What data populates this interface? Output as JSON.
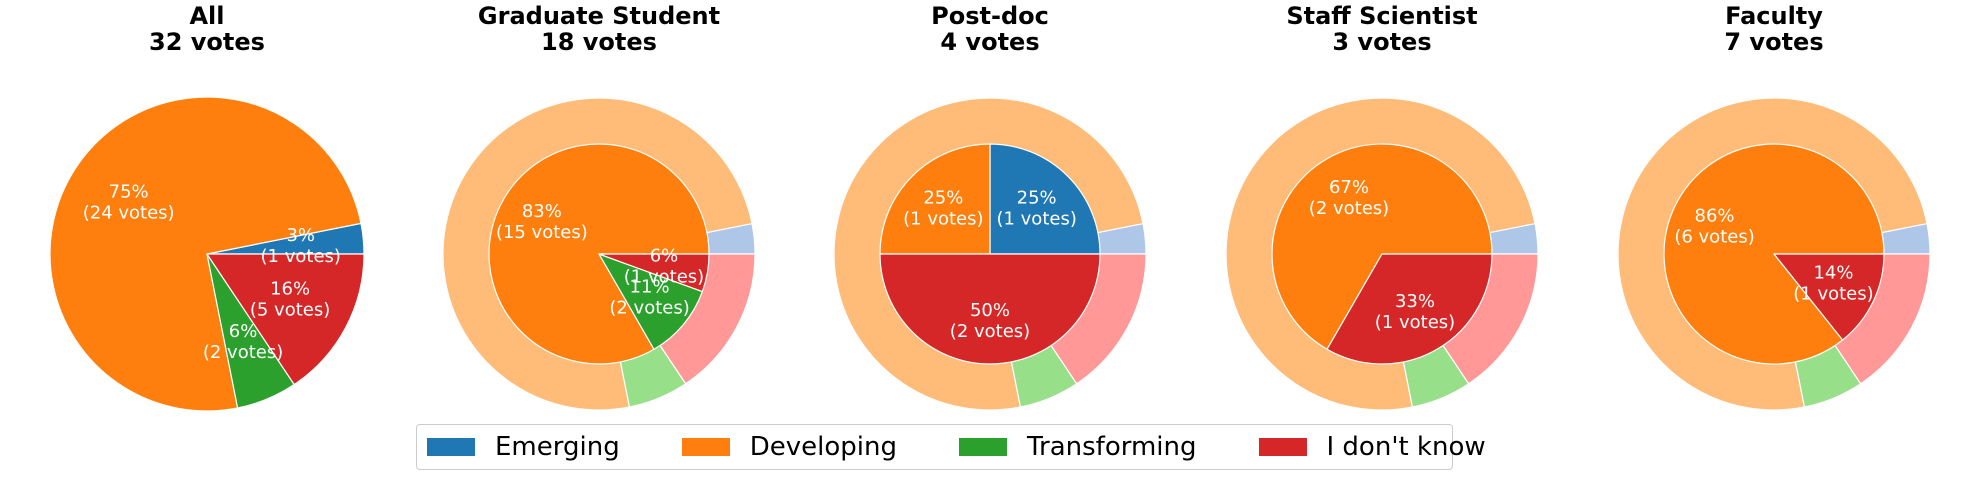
{
  "chart_data": {
    "type": "pie",
    "categories": [
      "Emerging",
      "Developing",
      "Transforming",
      "I don't know"
    ],
    "colors": {
      "inner": [
        "#1f77b4",
        "#ff7f0e",
        "#2ca02c",
        "#d62728"
      ],
      "outer": [
        "#aec7e8",
        "#ffbb78",
        "#98df8a",
        "#ff9896"
      ]
    },
    "outer_ring_values": [
      1,
      24,
      2,
      5
    ],
    "charts": [
      {
        "title": "All",
        "subtitle": "32 votes",
        "values": [
          1,
          24,
          2,
          5
        ],
        "labels": [
          {
            "pct": "3%",
            "votes": "(1 votes)"
          },
          {
            "pct": "75%",
            "votes": "(24 votes)"
          },
          {
            "pct": "6%",
            "votes": "(2 votes)"
          },
          {
            "pct": "16%",
            "votes": "(5 votes)"
          }
        ],
        "outer_ring": false
      },
      {
        "title": "Graduate Student",
        "subtitle": "18 votes",
        "values": [
          0,
          15,
          2,
          1
        ],
        "labels": [
          null,
          {
            "pct": "83%",
            "votes": "(15 votes)"
          },
          {
            "pct": "11%",
            "votes": "(2 votes)"
          },
          {
            "pct": "6%",
            "votes": "(1 votes)"
          }
        ],
        "outer_ring": true
      },
      {
        "title": "Post-doc",
        "subtitle": "4 votes",
        "values": [
          1,
          1,
          0,
          2
        ],
        "labels": [
          {
            "pct": "25%",
            "votes": "(1 votes)"
          },
          {
            "pct": "25%",
            "votes": "(1 votes)"
          },
          null,
          {
            "pct": "50%",
            "votes": "(2 votes)"
          }
        ],
        "outer_ring": true
      },
      {
        "title": "Staff Scientist",
        "subtitle": "3 votes",
        "values": [
          0,
          2,
          0,
          1
        ],
        "labels": [
          null,
          {
            "pct": "67%",
            "votes": "(2 votes)"
          },
          null,
          {
            "pct": "33%",
            "votes": "(1 votes)"
          }
        ],
        "outer_ring": true
      },
      {
        "title": "Faculty",
        "subtitle": "7 votes",
        "values": [
          0,
          6,
          0,
          1
        ],
        "labels": [
          null,
          {
            "pct": "86%",
            "votes": "(6 votes)"
          },
          null,
          {
            "pct": "14%",
            "votes": "(1 votes)"
          }
        ],
        "outer_ring": true
      }
    ],
    "legend": {
      "placement": "bottom-center",
      "entries": [
        "Emerging",
        "Developing",
        "Transforming",
        "I don't know"
      ]
    }
  }
}
